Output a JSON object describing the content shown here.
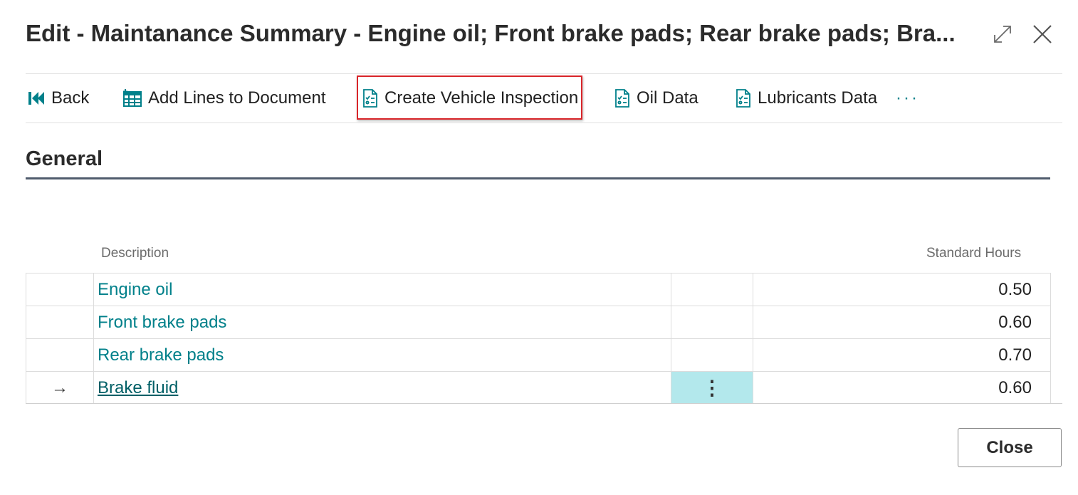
{
  "window": {
    "title": "Edit - Maintanance Summary - Engine oil; Front brake pads; Rear brake pads; Bra..."
  },
  "toolbar": {
    "actions": [
      {
        "label": "Back",
        "icon": "back-icon"
      },
      {
        "label": "Add Lines to Document",
        "icon": "add-lines-icon"
      },
      {
        "label": "Create Vehicle Inspection",
        "icon": "document-checklist-icon",
        "highlighted": true
      },
      {
        "label": "Oil Data",
        "icon": "document-checklist-icon"
      },
      {
        "label": "Lubricants Data",
        "icon": "document-checklist-icon"
      }
    ],
    "more_label": "···"
  },
  "section": {
    "title": "General"
  },
  "grid": {
    "columns": {
      "description": "Description",
      "standard_hours": "Standard Hours"
    },
    "rows": [
      {
        "description": "Engine oil",
        "hours": "0.50",
        "current": false
      },
      {
        "description": "Front brake pads",
        "hours": "0.60",
        "current": false
      },
      {
        "description": "Rear brake pads",
        "hours": "0.70",
        "current": false
      },
      {
        "description": "Brake fluid",
        "hours": "0.60",
        "current": true,
        "row_indicator": "→",
        "row_menu": "⋮"
      }
    ]
  },
  "footer": {
    "close_label": "Close"
  },
  "colors": {
    "accent": "#00808a",
    "highlight_border": "#d9252a",
    "active_cell": "#b3e8ec"
  }
}
